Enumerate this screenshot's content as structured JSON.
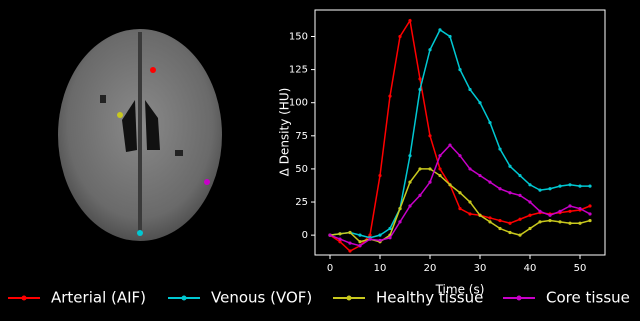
{
  "chart_data": {
    "type": "line",
    "x_label": "Time (s)",
    "y_label": "Δ Density (HU)",
    "x": [
      0,
      2,
      4,
      6,
      8,
      10,
      12,
      14,
      16,
      18,
      20,
      22,
      24,
      26,
      28,
      30,
      32,
      34,
      36,
      38,
      40,
      42,
      44,
      46,
      48,
      50,
      52
    ],
    "series": [
      {
        "name": "Arterial (AIF)",
        "color": "#ff0000",
        "values": [
          0,
          -5,
          -12,
          -8,
          0,
          45,
          105,
          150,
          162,
          118,
          75,
          50,
          38,
          20,
          16,
          15,
          13,
          11,
          9,
          12,
          15,
          17,
          16,
          17,
          18,
          19,
          22
        ]
      },
      {
        "name": "Venous (VOF)",
        "color": "#00c8d2",
        "values": [
          0,
          1,
          2,
          0,
          -2,
          0,
          5,
          20,
          60,
          110,
          140,
          155,
          150,
          125,
          110,
          100,
          85,
          65,
          52,
          45,
          38,
          34,
          35,
          37,
          38,
          37,
          37
        ]
      },
      {
        "name": "Healthy tissue",
        "color": "#c8c81e",
        "values": [
          0,
          1,
          2,
          -5,
          -3,
          -5,
          0,
          20,
          40,
          50,
          50,
          45,
          38,
          32,
          25,
          15,
          10,
          5,
          2,
          0,
          5,
          10,
          11,
          10,
          9,
          9,
          11
        ]
      },
      {
        "name": "Core tissue",
        "color": "#c800c8",
        "values": [
          0,
          -3,
          -6,
          -8,
          -3,
          -4,
          -2,
          10,
          22,
          30,
          40,
          60,
          68,
          60,
          50,
          45,
          40,
          35,
          32,
          30,
          25,
          18,
          15,
          18,
          22,
          20,
          16
        ]
      }
    ],
    "xlim": [
      -3,
      55
    ],
    "ylim": [
      -15,
      170
    ],
    "xticks": [
      0,
      10,
      20,
      30,
      40,
      50
    ],
    "yticks": [
      0,
      25,
      50,
      75,
      100,
      125,
      150
    ],
    "legend": "below"
  }
}
